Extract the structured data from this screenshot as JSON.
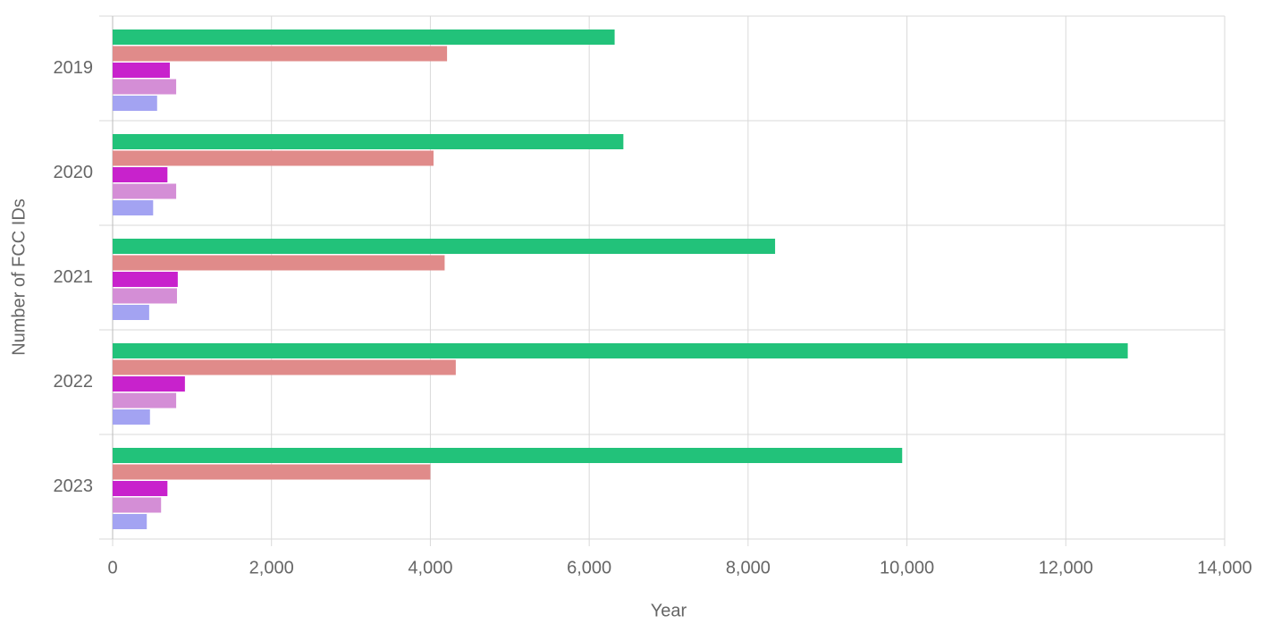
{
  "chart_data": {
    "type": "bar",
    "orientation": "horizontal",
    "x_label": "Year",
    "y_label": "Number of FCC IDs",
    "categories": [
      "2019",
      "2020",
      "2021",
      "2022",
      "2023"
    ],
    "series": [
      {
        "color": "#22c27a",
        "values": [
          6320,
          6430,
          8340,
          12780,
          9940
        ]
      },
      {
        "color": "#e08b8a",
        "values": [
          4210,
          4040,
          4180,
          4320,
          4000
        ]
      },
      {
        "color": "#c822cc",
        "values": [
          720,
          690,
          820,
          910,
          690
        ]
      },
      {
        "color": "#d48ed6",
        "values": [
          800,
          800,
          810,
          800,
          610
        ]
      },
      {
        "color": "#a3a3f2",
        "values": [
          560,
          510,
          460,
          470,
          430
        ]
      }
    ],
    "xlim": [
      0,
      14000
    ],
    "xticks": [
      0,
      {
        "value": 2000,
        "label": "2,000"
      },
      {
        "value": 4000,
        "label": "4,000"
      },
      {
        "value": 6000,
        "label": "6,000"
      },
      {
        "value": 8000,
        "label": "8,000"
      },
      {
        "value": 10000,
        "label": "10,000"
      },
      {
        "value": 12000,
        "label": "12,000"
      },
      {
        "value": 14000,
        "label": "14,000"
      }
    ],
    "grid": true
  }
}
